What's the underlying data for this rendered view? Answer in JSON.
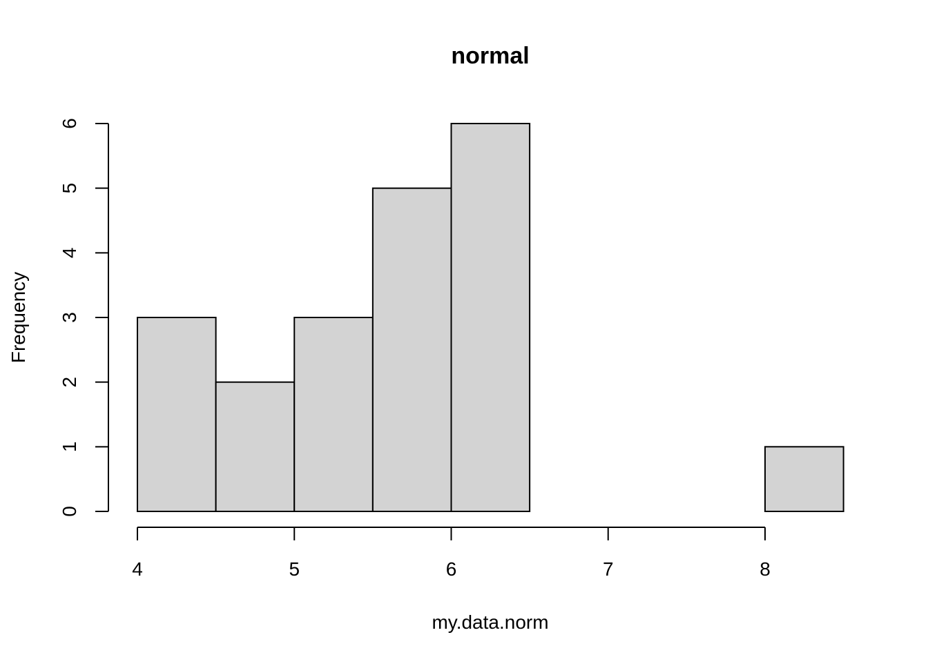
{
  "chart_data": {
    "type": "bar",
    "title": "normal",
    "xlabel": "my.data.norm",
    "ylabel": "Frequency",
    "bins": [
      {
        "start": 4.0,
        "end": 4.5,
        "count": 3
      },
      {
        "start": 4.5,
        "end": 5.0,
        "count": 2
      },
      {
        "start": 5.0,
        "end": 5.5,
        "count": 3
      },
      {
        "start": 5.5,
        "end": 6.0,
        "count": 5
      },
      {
        "start": 6.0,
        "end": 6.5,
        "count": 6
      },
      {
        "start": 6.5,
        "end": 7.0,
        "count": 0
      },
      {
        "start": 7.0,
        "end": 7.5,
        "count": 0
      },
      {
        "start": 7.5,
        "end": 8.0,
        "count": 0
      },
      {
        "start": 8.0,
        "end": 8.5,
        "count": 1
      }
    ],
    "xticks": [
      "4",
      "5",
      "6",
      "7",
      "8"
    ],
    "yticks": [
      "0",
      "1",
      "2",
      "3",
      "4",
      "5",
      "6"
    ],
    "xlim": [
      4,
      8.5
    ],
    "ylim": [
      0,
      6
    ],
    "grid": false,
    "bar_fill": "#d3d3d3",
    "bar_stroke": "#000000"
  }
}
